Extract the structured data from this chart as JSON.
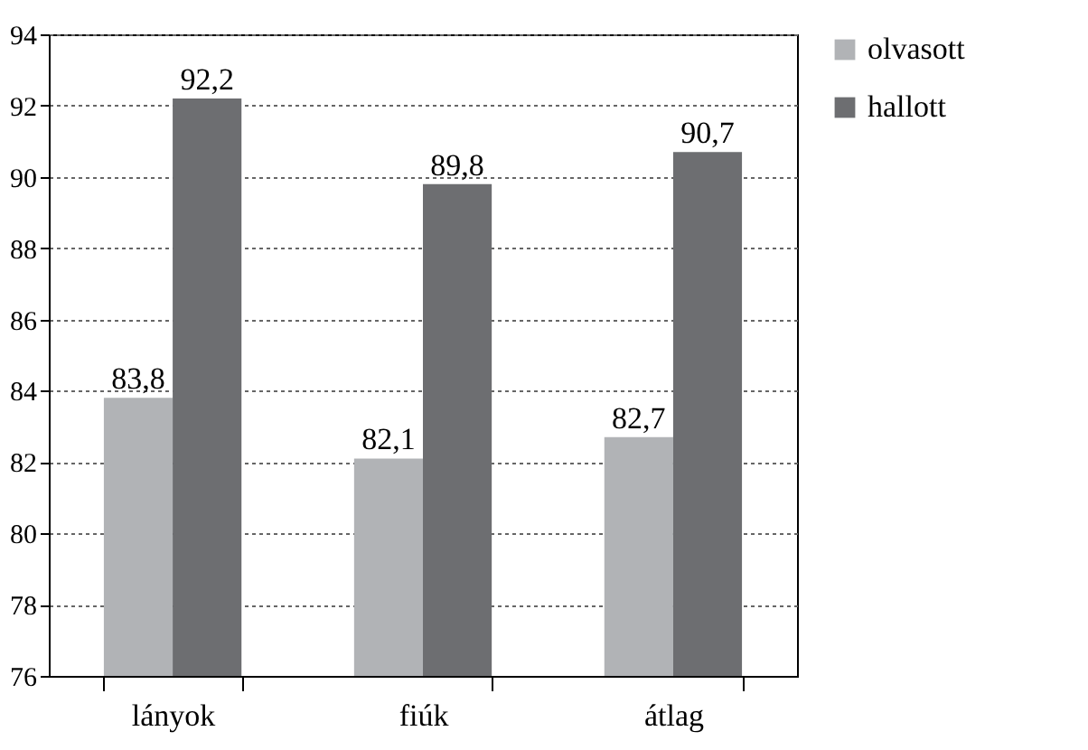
{
  "chart_data": {
    "type": "bar",
    "categories": [
      "lányok",
      "fiúk",
      "átlag"
    ],
    "series": [
      {
        "name": "olvasott",
        "color": "#b1b3b6",
        "values": [
          83.8,
          82.1,
          82.7
        ],
        "value_labels": [
          "83,8",
          "82,1",
          "82,7"
        ]
      },
      {
        "name": "hallott",
        "color": "#6d6e71",
        "values": [
          92.2,
          89.8,
          90.7
        ],
        "value_labels": [
          "92,2",
          "89,8",
          "90,7"
        ]
      }
    ],
    "ylim": [
      76,
      94
    ],
    "yticks": [
      76,
      78,
      80,
      82,
      84,
      86,
      88,
      90,
      92,
      94
    ],
    "grid": "y",
    "legend": "right"
  }
}
